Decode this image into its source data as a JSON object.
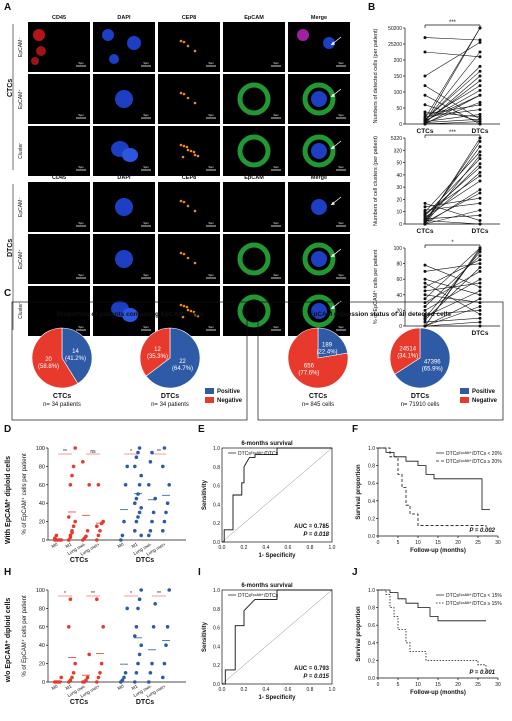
{
  "panel_letters": [
    "A",
    "B",
    "C",
    "D",
    "E",
    "F",
    "H",
    "I",
    "J"
  ],
  "panelA": {
    "columns": [
      "CD45",
      "DAPI",
      "CEP8",
      "EpCAM",
      "Merge"
    ],
    "groups": [
      {
        "name": "CTCs",
        "rows": [
          "EpCAM⁻",
          "EpCAM⁺",
          "Cluster"
        ]
      },
      {
        "name": "DTCs",
        "rows": [
          "EpCAM⁻",
          "EpCAM⁺",
          "Cluster"
        ]
      }
    ],
    "scale_label": "5μm"
  },
  "colors": {
    "blue": "#2f5aa6",
    "red": "#e83a2c",
    "fluor_blue": "#1d3fc4",
    "fluor_green": "#27b33b",
    "fluor_red": "#c81818",
    "fluor_orange": "#f28a1c"
  },
  "panelC": {
    "left_title": "Proportion of patients containing EpCAM⁺ cells",
    "right_title": "EpCAM expression status of all detected cells",
    "legend": [
      "Positive",
      "Negative"
    ],
    "pies": [
      {
        "name": "CTCs",
        "n": "n= 34 patients",
        "pos_label": [
          "14",
          "(41.2%)"
        ],
        "neg_label": [
          "20",
          "(58.8%)"
        ],
        "pos": 41.2
      },
      {
        "name": "DTCs",
        "n": "n= 34 patients",
        "pos_label": [
          "22",
          "(64.7%)"
        ],
        "neg_label": [
          "12",
          "(35.3%)"
        ],
        "pos": 64.7
      },
      {
        "name": "CTCs",
        "n": "n= 845 cells",
        "pos_label": [
          "189",
          "(22.4%)"
        ],
        "neg_label": [
          "656",
          "(77.6%)"
        ],
        "pos": 22.4
      },
      {
        "name": "DTCs",
        "n": "n= 71910 cells",
        "pos_label": [
          "47396",
          "(65.9%)"
        ],
        "neg_label": [
          "24514",
          "(34.1%)"
        ],
        "pos": 65.9
      }
    ]
  },
  "row_labels": [
    "With EpCAM⁺ diploid cells",
    "w/o EpCAM⁺ diploid cells"
  ],
  "chart_data": [
    {
      "panel": "B1",
      "type": "line",
      "ylabel": "Numbers of detected cells (per patient)",
      "x": [
        "CTCs",
        "DTCs"
      ],
      "yticks": [
        "0",
        "50",
        "100",
        "150",
        "200",
        "25200",
        "50200"
      ],
      "signif": "***",
      "pairs": [
        [
          3,
          200
        ],
        [
          5,
          150
        ],
        [
          8,
          120
        ],
        [
          2,
          100
        ],
        [
          10,
          80
        ],
        [
          0,
          60
        ],
        [
          20,
          40
        ],
        [
          15,
          30
        ],
        [
          5,
          20
        ],
        [
          3,
          10
        ],
        [
          40,
          5
        ],
        [
          60,
          0
        ],
        [
          80,
          10
        ],
        [
          100,
          170
        ],
        [
          150,
          140
        ],
        [
          180,
          175
        ],
        [
          1,
          0
        ],
        [
          0,
          5
        ],
        [
          7,
          60
        ],
        [
          12,
          200
        ],
        [
          4,
          90
        ],
        [
          25,
          15
        ],
        [
          2,
          45
        ],
        [
          6,
          70
        ],
        [
          9,
          110
        ]
      ]
    },
    {
      "panel": "B2",
      "type": "line",
      "ylabel": "Numbers of cell clusters (per patient)",
      "x": [
        "CTCs",
        "DTCs"
      ],
      "yticks": [
        "0",
        "10",
        "20",
        "30",
        "40",
        "50",
        "320",
        "5320"
      ],
      "signif": "***",
      "pairs": [
        [
          0,
          50
        ],
        [
          1,
          48
        ],
        [
          2,
          45
        ],
        [
          0,
          40
        ],
        [
          5,
          38
        ],
        [
          3,
          35
        ],
        [
          2,
          30
        ],
        [
          6,
          28
        ],
        [
          4,
          25
        ],
        [
          0,
          20
        ],
        [
          1,
          18
        ],
        [
          10,
          15
        ],
        [
          8,
          12
        ],
        [
          0,
          8
        ],
        [
          3,
          5
        ],
        [
          12,
          2
        ],
        [
          2,
          0
        ],
        [
          0,
          0
        ],
        [
          5,
          33
        ],
        [
          7,
          42
        ]
      ]
    },
    {
      "panel": "B3",
      "type": "line",
      "ylabel": "% of EpCAM⁺ cells per patient",
      "x": [
        "CTCs",
        "DTCs"
      ],
      "yticks": [
        "0",
        "20",
        "40",
        "60",
        "80",
        "100"
      ],
      "signif": "*",
      "pairs": [
        [
          0,
          100
        ],
        [
          0,
          98
        ],
        [
          10,
          95
        ],
        [
          25,
          90
        ],
        [
          50,
          85
        ],
        [
          70,
          80
        ],
        [
          78,
          50
        ],
        [
          60,
          40
        ],
        [
          40,
          30
        ],
        [
          30,
          70
        ],
        [
          20,
          60
        ],
        [
          15,
          20
        ],
        [
          5,
          10
        ],
        [
          0,
          0
        ],
        [
          0,
          5
        ],
        [
          35,
          100
        ],
        [
          45,
          55
        ],
        [
          0,
          25
        ],
        [
          12,
          45
        ],
        [
          55,
          15
        ],
        [
          0,
          35
        ],
        [
          8,
          75
        ]
      ]
    },
    {
      "panel": "D",
      "type": "scatter",
      "ylabel": "% of EpCAM⁺ cells per patient",
      "groups_top": [
        "M0",
        "M1",
        "Lung met-",
        "Lung met+",
        "M0",
        "M1",
        "Lung met-",
        "Lung met+"
      ],
      "groups": [
        "CTCs",
        "DTCs"
      ],
      "yticks": [
        "0",
        "20",
        "40",
        "60",
        "80",
        "100"
      ],
      "signifs": [
        "**",
        "ns",
        "*",
        "**"
      ],
      "series": [
        {
          "name": "CTCs",
          "values": [
            [
              0,
              0,
              0,
              0,
              0,
              2,
              5
            ],
            [
              0,
              5,
              10,
              15,
              20,
              25,
              60,
              70,
              80,
              100,
              0,
              3,
              8
            ],
            [
              0,
              2,
              4,
              10,
              60,
              85
            ],
            [
              0,
              5,
              10,
              18,
              20,
              15,
              60
            ]
          ]
        },
        {
          "name": "DTCs",
          "values": [
            [
              0,
              5,
              20,
              60,
              80
            ],
            [
              10,
              20,
              25,
              30,
              35,
              40,
              45,
              50,
              60,
              70,
              80,
              90,
              95,
              100,
              5
            ],
            [
              5,
              10,
              20,
              30,
              45,
              60,
              85,
              95
            ],
            [
              10,
              20,
              30,
              40,
              60,
              80,
              100
            ]
          ]
        }
      ]
    },
    {
      "panel": "E",
      "type": "line",
      "title": "6-months survival",
      "legend": "DTCsᴱᵖᶜᴬᴹ⁺/DTCs",
      "xlabel": "1- Specificity",
      "ylabel": "Sensitivity",
      "ticks": [
        "0.0",
        "0.2",
        "0.4",
        "0.6",
        "0.8",
        "1.0"
      ],
      "annot": [
        "AUC = 0.785",
        "P = 0.018"
      ],
      "x": [
        0,
        0.02,
        0.02,
        0.1,
        0.1,
        0.18,
        0.18,
        0.2,
        0.2,
        0.25,
        0.3,
        0.3,
        0.5,
        0.5,
        1.0
      ],
      "y": [
        0,
        0,
        0.13,
        0.13,
        0.5,
        0.5,
        0.63,
        0.63,
        0.8,
        0.9,
        0.9,
        0.93,
        0.93,
        1,
        1
      ]
    },
    {
      "panel": "F",
      "type": "line",
      "xlabel": "Follow-up (months)",
      "ylabel": "Survival proportion",
      "xticks": [
        "0",
        "5",
        "10",
        "15",
        "20",
        "25",
        "30"
      ],
      "yticks": [
        "0.0",
        "0.2",
        "0.4",
        "0.6",
        "0.8",
        "1.0"
      ],
      "legend": [
        "DTCsᴱᵖᶜᴬᴹ⁺/DTCs < 20%",
        "DTCsᴱᵖᶜᴬᴹ⁺/DTCs ≥ 20%"
      ],
      "annot": "P = 0.002"
    },
    {
      "panel": "H",
      "type": "scatter",
      "ylabel": "% of EpCAM⁺ cells per patient",
      "groups_top": [
        "M0",
        "M1",
        "Lung met-",
        "Lung met+",
        "M0",
        "M1",
        "Lung met-",
        "Lung met+"
      ],
      "groups": [
        "CTCs",
        "DTCs"
      ],
      "yticks": [
        "0",
        "20",
        "40",
        "60",
        "80",
        "100"
      ],
      "signifs": [
        "*",
        "**",
        "*",
        "**"
      ]
    },
    {
      "panel": "I",
      "type": "line",
      "title": "6-months survival",
      "legend": "DTCsᴱᵖᶜᴬᴹ⁺/DTCs",
      "xlabel": "1- Specificity",
      "ylabel": "Sensitivity",
      "ticks": [
        "0.0",
        "0.2",
        "0.4",
        "0.6",
        "0.8",
        "1.0"
      ],
      "annot": [
        "AUC = 0.793",
        "P = 0.015"
      ]
    },
    {
      "panel": "J",
      "type": "line",
      "xlabel": "Follow-up (months)",
      "ylabel": "Survival proportion",
      "xticks": [
        "0",
        "5",
        "10",
        "15",
        "20",
        "25",
        "30"
      ],
      "yticks": [
        "0.0",
        "0.2",
        "0.4",
        "0.6",
        "0.8",
        "1.0"
      ],
      "legend": [
        "DTCsᴱᵖᶜᴬᴹ⁺/DTCs < 15%",
        "DTCsᴱᵖᶜᴬᴹ⁺/DTCs ≥ 15%"
      ],
      "annot": "P = 0.001"
    }
  ]
}
